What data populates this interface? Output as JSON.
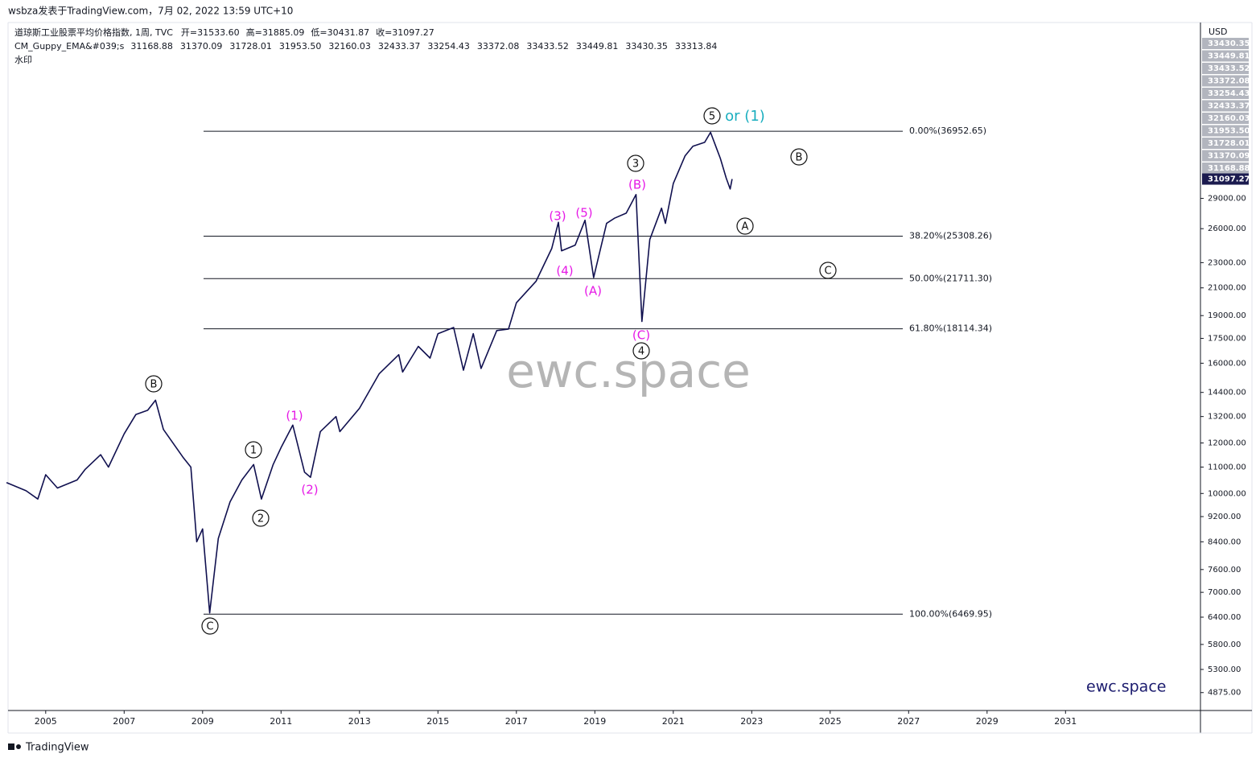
{
  "chart_data": {
    "type": "line",
    "header": "wsbza发表于TradingView.com，7月 02, 2022 13:59 UTC+10",
    "symbol": "道琼斯工业股票平均价格指数, 1周, TVC",
    "ohlc": [
      {
        "name": "开=",
        "value": 31533.6,
        "label": "31533.60"
      },
      {
        "name": "高=",
        "value": 31885.09,
        "label": "31885.09"
      },
      {
        "name": "低=",
        "value": 30431.87,
        "label": "30431.87"
      },
      {
        "name": "收=",
        "value": 31097.27,
        "label": "31097.27"
      }
    ],
    "indicator": "CM_Guppy_EMA&#039;s",
    "indicator_values": [
      {
        "value": 31168.88,
        "label": "31168.88"
      },
      {
        "value": 31370.09,
        "label": "31370.09"
      },
      {
        "value": 31728.01,
        "label": "31728.01"
      },
      {
        "value": 31953.5,
        "label": "31953.50"
      },
      {
        "value": 32160.03,
        "label": "32160.03"
      },
      {
        "value": 32433.37,
        "label": "32433.37"
      },
      {
        "value": 33254.43,
        "label": "33254.43"
      },
      {
        "value": 33372.08,
        "label": "33372.08"
      },
      {
        "value": 33433.52,
        "label": "33433.52"
      },
      {
        "value": 33449.81,
        "label": "33449.81"
      },
      {
        "value": 33430.35,
        "label": "33430.35"
      },
      {
        "value": 33313.84,
        "label": "33313.84"
      }
    ],
    "watermark_text": "水印",
    "currency": "USD",
    "color": "#10104f",
    "log_scale": true,
    "x": [
      2004.0,
      2004.5,
      2004.8,
      2005.0,
      2005.3,
      2005.8,
      2006.0,
      2006.4,
      2006.6,
      2007.0,
      2007.3,
      2007.6,
      2007.8,
      2008.0,
      2008.5,
      2008.7,
      2008.85,
      2009.0,
      2009.18,
      2009.4,
      2009.7,
      2010.0,
      2010.3,
      2010.5,
      2010.8,
      2011.0,
      2011.3,
      2011.6,
      2011.75,
      2012.0,
      2012.4,
      2012.5,
      2013.0,
      2013.5,
      2014.0,
      2014.1,
      2014.5,
      2014.8,
      2015.0,
      2015.4,
      2015.65,
      2015.9,
      2016.1,
      2016.5,
      2016.8,
      2017.0,
      2017.5,
      2017.9,
      2018.07,
      2018.15,
      2018.5,
      2018.75,
      2018.97,
      2019.3,
      2019.5,
      2019.8,
      2020.05,
      2020.2,
      2020.4,
      2020.7,
      2020.8,
      2021.0,
      2021.3,
      2021.5,
      2021.8,
      2021.95,
      2022.2,
      2022.35,
      2022.45,
      2022.5
    ],
    "values": [
      10400,
      10100,
      9800,
      10700,
      10200,
      10500,
      10900,
      11500,
      11000,
      12400,
      13300,
      13500,
      14000,
      12600,
      11400,
      11000,
      8400,
      8800,
      6500,
      8500,
      9700,
      10500,
      11100,
      9800,
      11100,
      11800,
      12800,
      10800,
      10600,
      12500,
      13200,
      12500,
      13600,
      15400,
      16500,
      15500,
      17000,
      16300,
      17800,
      18200,
      15600,
      17800,
      15700,
      18000,
      18100,
      19900,
      21500,
      24200,
      26600,
      24000,
      24500,
      26800,
      21800,
      26500,
      27000,
      27500,
      29400,
      18600,
      25000,
      28000,
      26500,
      30600,
      33800,
      35000,
      35500,
      36800,
      33500,
      31200,
      30000,
      31097.27
    ],
    "xlim": [
      2004.04,
      2034.44
    ],
    "xticks": [
      2005,
      2007,
      2009,
      2011,
      2013,
      2015,
      2017,
      2019,
      2021,
      2023,
      2025,
      2027,
      2029,
      2031
    ],
    "ylim": [
      4570,
      54700
    ],
    "yticks": [
      {
        "value": 29000,
        "label": "29000.00"
      },
      {
        "value": 26000,
        "label": "26000.00"
      },
      {
        "value": 23000,
        "label": "23000.00"
      },
      {
        "value": 21000,
        "label": "21000.00"
      },
      {
        "value": 19000,
        "label": "19000.00"
      },
      {
        "value": 17500,
        "label": "17500.00"
      },
      {
        "value": 16000,
        "label": "16000.00"
      },
      {
        "value": 14400,
        "label": "14400.00"
      },
      {
        "value": 13200,
        "label": "13200.00"
      },
      {
        "value": 12000,
        "label": "12000.00"
      },
      {
        "value": 11000,
        "label": "11000.00"
      },
      {
        "value": 10000,
        "label": "10000.00"
      },
      {
        "value": 9200,
        "label": "9200.00"
      },
      {
        "value": 8400,
        "label": "8400.00"
      },
      {
        "value": 7600,
        "label": "7600.00"
      },
      {
        "value": 7000,
        "label": "7000.00"
      },
      {
        "value": 6400,
        "label": "6400.00"
      },
      {
        "value": 5800,
        "label": "5800.00"
      },
      {
        "value": 5300,
        "label": "5300.00"
      },
      {
        "value": 4875,
        "label": "4875.00"
      }
    ],
    "close_label": {
      "value": 31097.27,
      "label": "31097.27"
    },
    "fib_levels": [
      {
        "label": "0.00%(36952.65)",
        "value": 36952.65
      },
      {
        "label": "38.20%(25308.26)",
        "value": 25308.26
      },
      {
        "label": "50.00%(21711.30)",
        "value": 21711.3
      },
      {
        "label": "61.80%(18114.34)",
        "value": 18114.34
      },
      {
        "label": "100.00%(6469.95)",
        "value": 6469.95
      }
    ],
    "annotations": [
      {
        "text": "5",
        "circled": true,
        "color": "#111"
      },
      {
        "text": "or (1)",
        "circled": false,
        "color": "#1aaebf"
      },
      {
        "text": "B",
        "circled": true,
        "color": "#111"
      },
      {
        "text": "3",
        "circled": true,
        "color": "#111"
      },
      {
        "text": "(B)",
        "circled": false,
        "color": "#e619e6"
      },
      {
        "text": "(3)",
        "circled": false,
        "color": "#e619e6"
      },
      {
        "text": "(5)",
        "circled": false,
        "color": "#e619e6"
      },
      {
        "text": "A",
        "circled": true,
        "color": "#111"
      },
      {
        "text": "(4)",
        "circled": false,
        "color": "#e619e6"
      },
      {
        "text": "C",
        "circled": true,
        "color": "#111"
      },
      {
        "text": "(A)",
        "circled": false,
        "color": "#e619e6"
      },
      {
        "text": "(C)",
        "circled": false,
        "color": "#e619e6"
      },
      {
        "text": "4",
        "circled": true,
        "color": "#111"
      },
      {
        "text": "B",
        "circled": true,
        "color": "#111"
      },
      {
        "text": "(1)",
        "circled": false,
        "color": "#e619e6"
      },
      {
        "text": "1",
        "circled": true,
        "color": "#111"
      },
      {
        "text": "(2)",
        "circled": false,
        "color": "#e619e6"
      },
      {
        "text": "2",
        "circled": true,
        "color": "#111"
      },
      {
        "text": "C",
        "circled": true,
        "color": "#111"
      }
    ],
    "watermark": "ewc.space",
    "footer": "TradingView"
  }
}
